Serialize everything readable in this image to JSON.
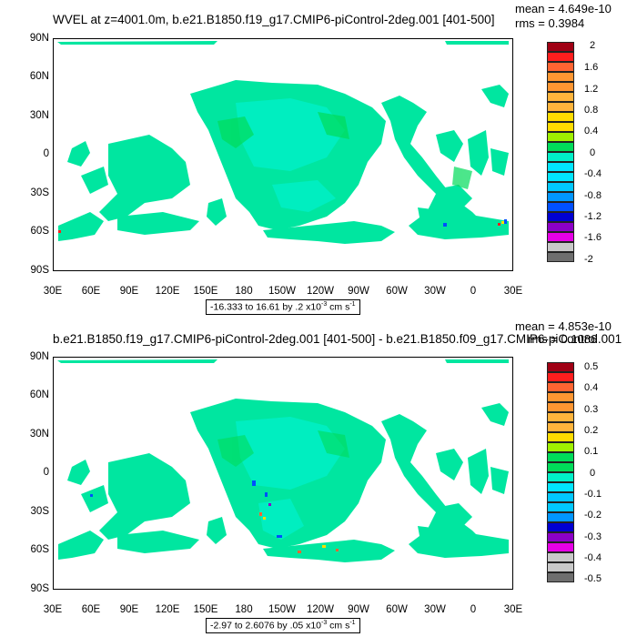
{
  "panels": [
    {
      "title": "WVEL at z=4001.0m, b.e21.B1850.f19_g17.CMIP6-piControl-2deg.001 [401-500]",
      "mean": "mean = 4.649e-10",
      "rms": "rms = 0.3984",
      "range_text": "-16.333 to 16.61 by .2 x10",
      "range_exp": "-3",
      "range_units": " cm s",
      "range_units_exp": "-1",
      "legend_labels": [
        "2",
        "1.6",
        "1.2",
        "0.8",
        "0.4",
        "0",
        "-0.4",
        "-0.8",
        "-1.2",
        "-1.6",
        "-2"
      ]
    },
    {
      "title": "b.e21.B1850.f19_g17.CMIP6-piControl-2deg.001 [401-500] - b.e21.B1850.f09_g17.CMIP6-piControl.001",
      "mean": "mean = 4.853e-10",
      "rms": "rms = 0.1086",
      "range_text": "-2.97 to 2.6076 by .05 x10",
      "range_exp": "-3",
      "range_units": " cm s",
      "range_units_exp": "-1",
      "legend_labels": [
        "0.5",
        "0.4",
        "0.3",
        "0.2",
        "0.1",
        "0",
        "-0.1",
        "-0.2",
        "-0.3",
        "-0.4",
        "-0.5"
      ]
    }
  ],
  "lat_labels": [
    "90N",
    "60N",
    "30N",
    "0",
    "30S",
    "60S",
    "90S"
  ],
  "lon_labels": [
    "30E",
    "60E",
    "90E",
    "120E",
    "150E",
    "180",
    "150W",
    "120W",
    "90W",
    "60W",
    "30W",
    "0",
    "30E"
  ],
  "legend_colors": [
    "#a00014",
    "#ff1e1e",
    "#ff6432",
    "#ff9632",
    "#ffb43c",
    "#ffdc00",
    "#a0f000",
    "#00dc5a",
    "#00f0c8",
    "#00e6ff",
    "#00c8ff",
    "#0096ff",
    "#0050ff",
    "#0000d2",
    "#8c00c8",
    "#e600e6",
    "#c8c8c8",
    "#6e6e6e"
  ],
  "field_color": "#00e6a0"
}
